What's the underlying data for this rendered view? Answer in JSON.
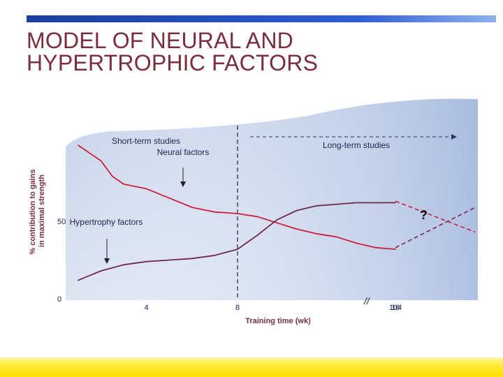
{
  "slide": {
    "title_line1": "MODEL OF NEURAL AND",
    "title_line2": "HYPERTROPHIC FACTORS",
    "accent_color": "#2f5bd0",
    "title_color": "#7b2c3d",
    "footer_color": "#ffe600"
  },
  "chart_data": {
    "type": "line",
    "xlabel": "Training time (wk)",
    "ylabel_line1": "% contribution to gains",
    "ylabel_line2": "in maximal strength",
    "x_ticks": [
      "4",
      "8",
      "16",
      "104"
    ],
    "y_ticks": [
      "0",
      "50"
    ],
    "ylim": [
      0,
      100
    ],
    "axis_break": "//",
    "regions": {
      "short_term": "Short-term studies",
      "long_term": "Long-term studies",
      "divider_at_week": 8
    },
    "annotations": {
      "neural": "Neural factors",
      "hypertrophy": "Hypertrophy factors",
      "unknown": "?"
    },
    "series": [
      {
        "name": "Neural factors",
        "color": "#cc1f3d",
        "x": [
          1,
          2,
          2.5,
          3,
          4,
          5,
          6,
          7,
          8,
          9,
          10,
          11,
          12,
          13,
          14,
          15,
          16
        ],
        "y": [
          99,
          89,
          79,
          74,
          71,
          65,
          59,
          56,
          55,
          53,
          49,
          45,
          42,
          40,
          36,
          33,
          32
        ]
      },
      {
        "name": "Hypertrophy factors",
        "color": "#6e2a4c",
        "x": [
          1,
          2,
          3,
          4,
          5,
          6,
          7,
          8,
          9,
          10,
          11,
          12,
          13,
          14,
          16
        ],
        "y": [
          12,
          18,
          22,
          24,
          25,
          26,
          28,
          32,
          41,
          51,
          57,
          60,
          61,
          62,
          62
        ]
      }
    ],
    "projection": {
      "neural": {
        "x": [
          104,
          130
        ],
        "y": [
          63,
          43
        ]
      },
      "hypertrophy": {
        "x": [
          104,
          130
        ],
        "y": [
          33,
          59
        ]
      }
    }
  }
}
